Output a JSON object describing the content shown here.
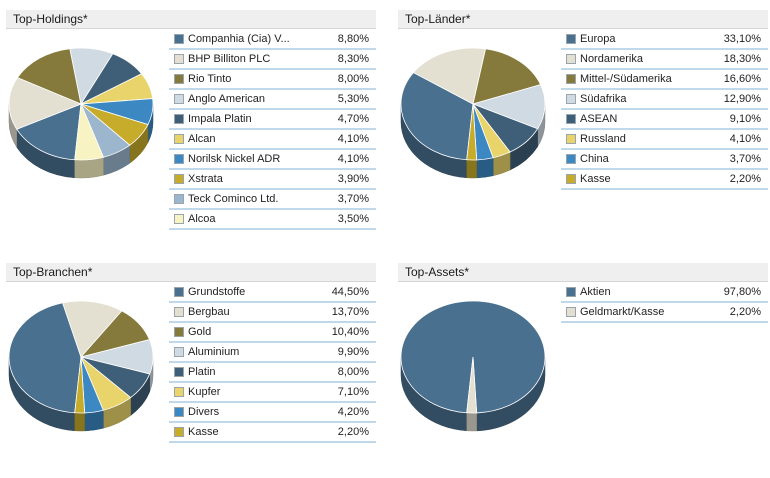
{
  "chart_data": [
    {
      "type": "pie",
      "title": "Top-Holdings*",
      "categories": [
        "Companhia (Cia) V...",
        "BHP Billiton PLC",
        "Rio Tinto",
        "Anglo American",
        "Impala Platin",
        "Alcan",
        "Norilsk Nickel ADR",
        "Xstrata",
        "Teck Cominco Ltd.",
        "Alcoa"
      ],
      "values": [
        8.8,
        8.3,
        8.0,
        5.3,
        4.7,
        4.1,
        4.1,
        3.9,
        3.7,
        3.5
      ],
      "labels": [
        "8,80%",
        "8,30%",
        "8,00%",
        "5,30%",
        "4,70%",
        "4,10%",
        "4,10%",
        "3,90%",
        "3,70%",
        "3,50%"
      ],
      "colors": [
        "#4a7090",
        "#e3e0d1",
        "#857a3c",
        "#d0dae2",
        "#3f5e77",
        "#e8d46a",
        "#3b88c2",
        "#c7ac2c",
        "#9bb6cd",
        "#f7f3c2"
      ],
      "legend": "right"
    },
    {
      "type": "pie",
      "title": "Top-Länder*",
      "categories": [
        "Europa",
        "Nordamerika",
        "Mittel-/Südamerika",
        "Südafrika",
        "ASEAN",
        "Russland",
        "China",
        "Kasse"
      ],
      "values": [
        33.1,
        18.3,
        16.6,
        12.9,
        9.1,
        4.1,
        3.7,
        2.2
      ],
      "labels": [
        "33,10%",
        "18,30%",
        "16,60%",
        "12,90%",
        "9,10%",
        "4,10%",
        "3,70%",
        "2,20%"
      ],
      "colors": [
        "#4a7090",
        "#e3e0d1",
        "#857a3c",
        "#d0dae2",
        "#3f5e77",
        "#e8d46a",
        "#3b88c2",
        "#c7ac2c"
      ],
      "legend": "right"
    },
    {
      "type": "pie",
      "title": "Top-Branchen*",
      "categories": [
        "Grundstoffe",
        "Bergbau",
        "Gold",
        "Aluminium",
        "Platin",
        "Kupfer",
        "Divers",
        "Kasse"
      ],
      "values": [
        44.5,
        13.7,
        10.4,
        9.9,
        8.0,
        7.1,
        4.2,
        2.2
      ],
      "labels": [
        "44,50%",
        "13,70%",
        "10,40%",
        "9,90%",
        "8,00%",
        "7,10%",
        "4,20%",
        "2,20%"
      ],
      "colors": [
        "#4a7090",
        "#e3e0d1",
        "#857a3c",
        "#d0dae2",
        "#3f5e77",
        "#e8d46a",
        "#3b88c2",
        "#c7ac2c"
      ],
      "legend": "right"
    },
    {
      "type": "pie",
      "title": "Top-Assets*",
      "categories": [
        "Aktien",
        "Geldmarkt/Kasse"
      ],
      "values": [
        97.8,
        2.2
      ],
      "labels": [
        "97,80%",
        "2,20%"
      ],
      "colors": [
        "#4a7090",
        "#e3e0d1"
      ],
      "legend": "right"
    }
  ]
}
